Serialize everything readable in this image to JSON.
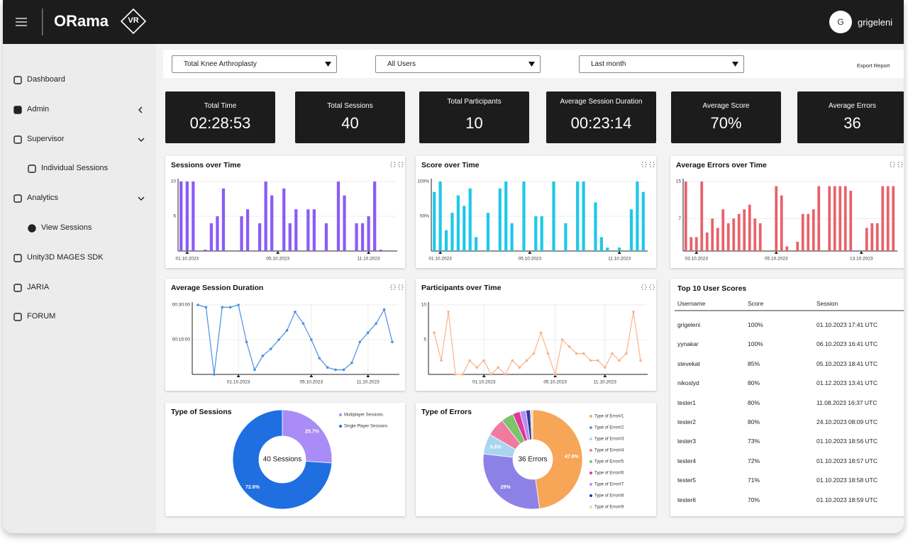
{
  "header": {
    "logo": "ORama",
    "badge": "VR",
    "avatar": "G",
    "user": "grigeleni"
  },
  "sidebar": [
    "Dashboard",
    "Admin",
    "Supervisor",
    "Individual Sessions",
    "Analytics",
    "View Sessions",
    "Unity3D MAGES SDK",
    "JARIA",
    "FORUM"
  ],
  "filters": [
    "Total Knee Arthroplasty",
    "All Users",
    "Last month"
  ],
  "export": "Export Report",
  "kpis": [
    {
      "label": "Total Time",
      "value": "02:28:53"
    },
    {
      "label": "Total Sessions",
      "value": "40"
    },
    {
      "label": "Total Participants",
      "value": "10"
    },
    {
      "label": "Average Session Duration",
      "value": "00:23:14"
    },
    {
      "label": "Average Score",
      "value": "70%"
    },
    {
      "label": "Average Errors",
      "value": "36"
    }
  ],
  "chart_data": [
    {
      "type": "bar",
      "title": "Sessions over Time",
      "color": "#8b5cf6",
      "grid": true,
      "categories": [
        null,
        "01.10.2023",
        null,
        null,
        null,
        null,
        null,
        null,
        null,
        null,
        null,
        null,
        null,
        null,
        null,
        null,
        "05.10.2023",
        null,
        null,
        null,
        null,
        null,
        null,
        null,
        null,
        null,
        null,
        null,
        null,
        null,
        null,
        "11.10.2023",
        null,
        null,
        null,
        null
      ],
      "values": [
        10,
        10,
        10,
        0,
        0.2,
        4,
        5,
        9,
        0,
        0,
        5,
        6,
        0,
        4,
        10,
        8,
        0,
        9,
        4,
        6,
        0,
        6,
        6,
        0,
        4,
        0,
        10,
        8,
        0,
        4,
        4,
        5,
        10,
        0.2,
        0,
        0
      ],
      "ylim": [
        0,
        10
      ],
      "yticks": [
        5,
        10
      ]
    },
    {
      "type": "bar",
      "title": "Score over Time",
      "color": "#1fc8e8",
      "grid": true,
      "categories": [
        null,
        "01.10.2023",
        null,
        null,
        null,
        null,
        null,
        null,
        null,
        null,
        null,
        null,
        null,
        null,
        null,
        null,
        "05.10.2023",
        null,
        null,
        null,
        null,
        null,
        null,
        null,
        null,
        null,
        null,
        null,
        null,
        null,
        null,
        "11.10.2023",
        null,
        null,
        null,
        null
      ],
      "values": [
        85,
        100,
        30,
        55,
        80,
        65,
        90,
        20,
        0,
        55,
        0,
        90,
        100,
        40,
        0,
        100,
        0,
        50,
        50,
        0,
        100,
        0,
        40,
        0,
        100,
        100,
        0,
        70,
        20,
        5,
        0,
        5,
        0,
        60,
        100,
        85
      ],
      "ylim": [
        0,
        100
      ],
      "yticks": [
        {
          "value": 50,
          "label": "50%"
        },
        {
          "value": 100,
          "label": "100%"
        }
      ]
    },
    {
      "type": "bar",
      "title": "Average Errors over Time",
      "color": "#e8616a",
      "grid": true,
      "categories": [
        null,
        null,
        "03.10.2023",
        null,
        null,
        null,
        null,
        null,
        null,
        null,
        null,
        null,
        null,
        null,
        null,
        null,
        null,
        "05.10.2023",
        null,
        null,
        null,
        null,
        null,
        null,
        null,
        null,
        null,
        null,
        null,
        null,
        null,
        null,
        null,
        "13.10.2023",
        null,
        null,
        null,
        null,
        null,
        null
      ],
      "values": [
        15,
        3,
        3,
        15,
        4,
        7,
        5,
        9,
        6,
        7,
        8,
        9,
        10,
        7,
        6,
        0,
        0,
        14,
        12,
        1,
        0,
        2,
        8,
        8,
        9,
        14,
        0,
        14,
        14,
        14,
        14,
        13,
        0,
        0,
        5,
        6,
        6,
        14,
        14,
        14
      ],
      "ylim": [
        0,
        15
      ],
      "yticks": [
        7,
        15
      ]
    },
    {
      "type": "line",
      "title": "Average Session Duration",
      "color": "#4a90e2",
      "grid": true,
      "categories": [
        null,
        null,
        null,
        null,
        null,
        "01.10.2023",
        null,
        null,
        null,
        null,
        null,
        null,
        null,
        null,
        "05.10.2023",
        null,
        null,
        null,
        null,
        null,
        null,
        "11.10.2023",
        null,
        null,
        null
      ],
      "values": [
        30,
        29,
        0,
        29,
        29,
        30,
        14,
        2,
        8,
        11,
        15,
        19,
        27,
        22,
        15,
        7,
        3,
        2,
        2,
        5,
        14,
        18,
        22,
        28,
        14
      ],
      "ylim": [
        0,
        30
      ],
      "yticks": [
        {
          "value": 15,
          "label": "00:15:00"
        },
        {
          "value": 30,
          "label": "00:30:00"
        }
      ]
    },
    {
      "type": "line",
      "title": "Participants over Time",
      "color": "#f8b48c",
      "grid": true,
      "categories": [
        null,
        null,
        null,
        null,
        null,
        null,
        null,
        "01.10.2023",
        null,
        null,
        null,
        null,
        null,
        null,
        null,
        null,
        null,
        "05.10.2023",
        null,
        null,
        null,
        null,
        null,
        null,
        "11.10.2023",
        null,
        null,
        null,
        null,
        null
      ],
      "values": [
        6,
        2,
        9,
        0,
        0,
        2,
        1,
        2,
        0,
        1,
        0,
        2,
        1,
        2,
        3,
        6,
        3,
        0,
        5,
        4,
        3,
        3,
        2,
        2,
        1,
        3,
        2,
        3,
        9,
        2
      ],
      "ylim": [
        0,
        10
      ],
      "yticks": [
        5,
        10
      ]
    },
    {
      "type": "pie",
      "title": "Type of Sessions",
      "center_label": "40 Sessions",
      "categories": [
        "Multiplayer Sessions",
        "Single Player Sessions"
      ],
      "values": [
        25.7,
        72.6
      ],
      "value_labels": [
        "25.7%",
        "72.6%"
      ],
      "colors": [
        "#a98cf5",
        "#1f6fe0"
      ]
    },
    {
      "type": "pie",
      "title": "Type of Errors",
      "center_label": "36 Errors",
      "categories": [
        "Type of Error#1",
        "Type of Error#2",
        "Type of Error#3",
        "Type of Error#4",
        "Type of Error#5",
        "Type of Error#6",
        "Type of Error#7",
        "Type of Error#8",
        "Type of Error#9"
      ],
      "values": [
        47.8,
        29,
        6.6,
        6,
        4,
        2.4,
        2,
        1.4,
        0.8
      ],
      "value_labels": [
        "47.8%",
        "29%",
        "6.6%",
        null,
        null,
        null,
        null,
        null,
        null
      ],
      "colors": [
        "#f7a556",
        "#8c82e6",
        "#a9d5f0",
        "#f07aa0",
        "#7cc36a",
        "#e0399b",
        "#b98ef0",
        "#2e3a9c",
        "#f4d2b4"
      ]
    }
  ],
  "table": {
    "title": "Top 10 User Scores",
    "columns": [
      "Username",
      "Score",
      "Session"
    ],
    "rows": [
      [
        "grigeleni",
        "100%",
        "01.10.2023 17:41 UTC"
      ],
      [
        "yynakar",
        "100%",
        "06.10.2023 16:41 UTC"
      ],
      [
        "stevekat",
        "85%",
        "05.10.2023 18:41 UTC"
      ],
      [
        "nikoslyd",
        "80%",
        "01.12.2023 13:41 UTC"
      ],
      [
        "tester1",
        "80%",
        "11.08.2023 16:37 UTC"
      ],
      [
        "tester2",
        "80%",
        "24.10.2023 08:09 UTC"
      ],
      [
        "tester3",
        "73%",
        "01.10.2023 18:56 UTC"
      ],
      [
        "tester4",
        "72%",
        "01.10.2023 18:57 UTC"
      ],
      [
        "tester5",
        "71%",
        "01.10.2023 18:58 UTC"
      ],
      [
        "tester6",
        "70%",
        "01.10.2023 18:59 UTC"
      ]
    ]
  }
}
